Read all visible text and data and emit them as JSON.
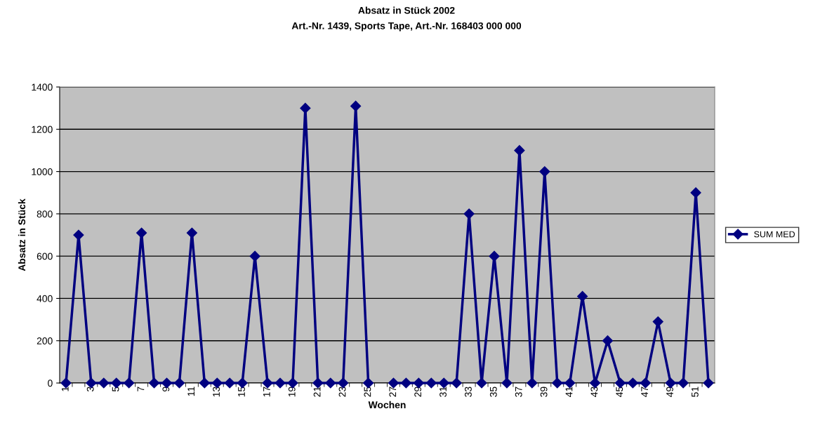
{
  "chart_data": {
    "type": "line",
    "title": "Absatz in Stück 2002",
    "subtitle": "Art.-Nr. 1439, Sports Tape, Art.-Nr. 168403 000 000",
    "xlabel": "Wochen",
    "ylabel": "Absatz in Stück",
    "categories": [
      "1",
      null,
      "3",
      null,
      "5",
      null,
      "7",
      null,
      "9",
      null,
      "11",
      null,
      "13",
      null,
      "15",
      null,
      "17",
      null,
      "19",
      null,
      "21",
      null,
      "23",
      null,
      "25",
      null,
      "27",
      null,
      "29",
      null,
      "31",
      null,
      "33",
      null,
      "35",
      null,
      "37",
      null,
      "39",
      null,
      "41",
      null,
      "43",
      null,
      "45",
      null,
      "47",
      null,
      "49",
      null,
      "51",
      null
    ],
    "series": [
      {
        "name": "SUM MED",
        "color": "#000080",
        "values": [
          0,
          700,
          0,
          0,
          0,
          0,
          710,
          0,
          0,
          0,
          710,
          0,
          0,
          0,
          0,
          600,
          0,
          0,
          0,
          1300,
          0,
          0,
          0,
          1310,
          0,
          null,
          0,
          0,
          0,
          0,
          0,
          0,
          800,
          0,
          600,
          0,
          1100,
          0,
          1000,
          0,
          0,
          410,
          0,
          200,
          0,
          0,
          0,
          290,
          0,
          0,
          900,
          0
        ]
      }
    ],
    "ylim": [
      0,
      1400
    ],
    "yticks": [
      0,
      200,
      400,
      600,
      800,
      1000,
      1200,
      1400
    ],
    "grid": "y",
    "legend": "right",
    "marker": "diamond",
    "line_style": "solid"
  }
}
